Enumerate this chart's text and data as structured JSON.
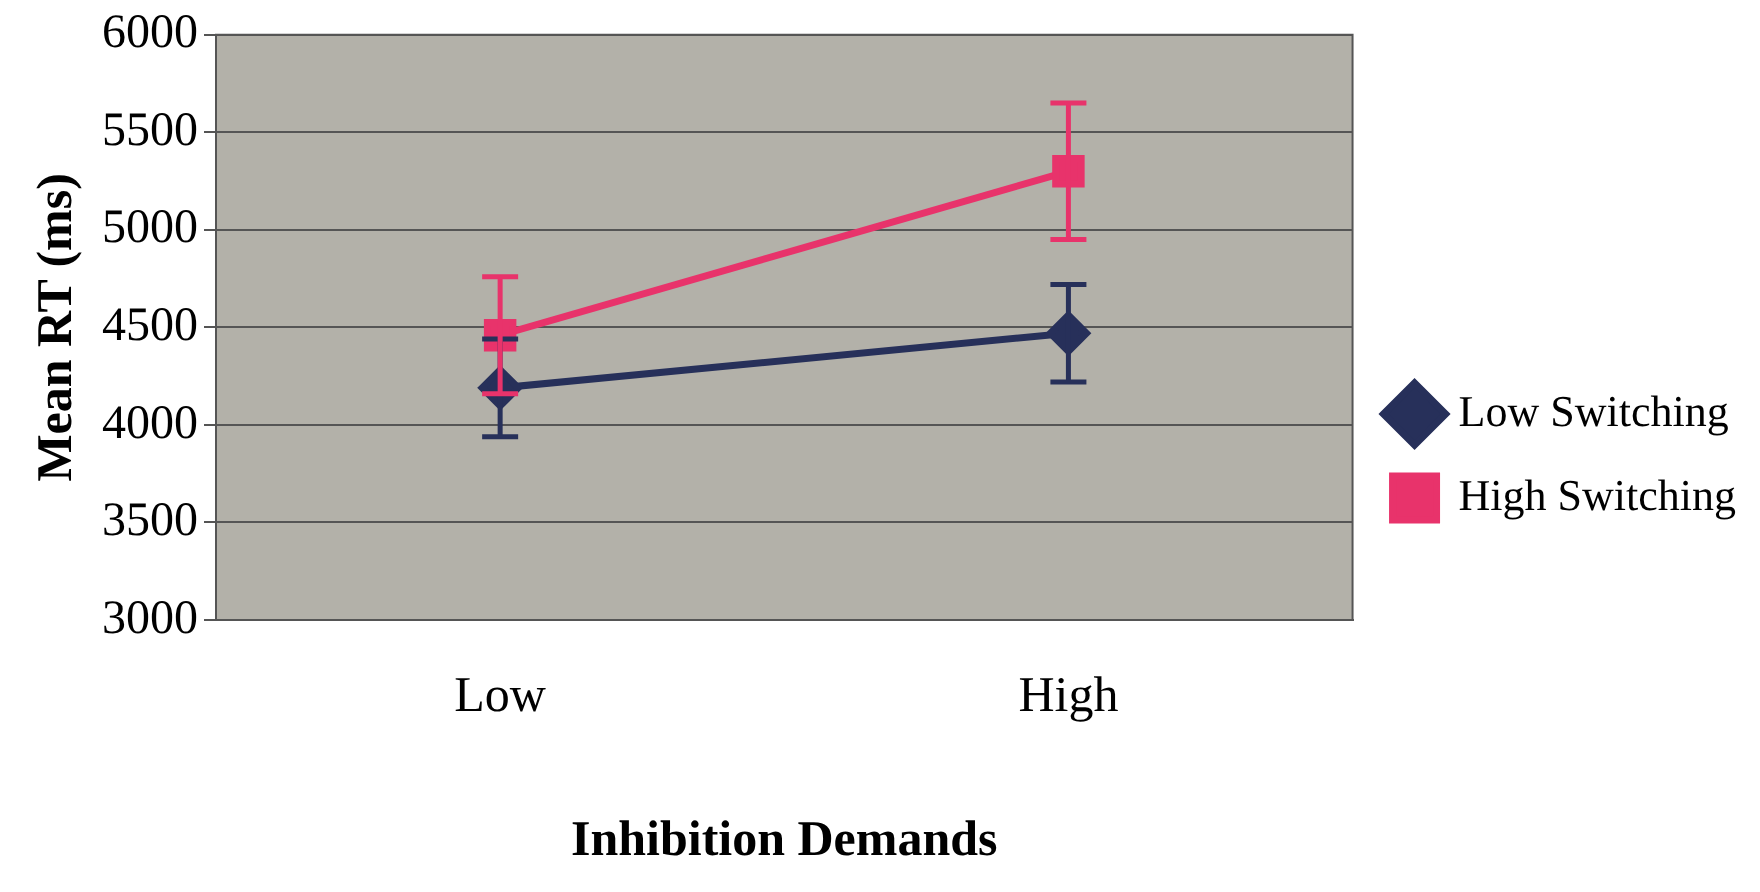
{
  "chart_data": {
    "type": "line",
    "xlabel": "Inhibition Demands",
    "ylabel": "Mean RT (ms)",
    "categories": [
      "Low",
      "High"
    ],
    "series": [
      {
        "name": "Low Switching",
        "color": "#27305a",
        "values": [
          4190,
          4470
        ],
        "errors": [
          250,
          250
        ],
        "marker": "diamond"
      },
      {
        "name": "High Switching",
        "color": "#e8336b",
        "values": [
          4460,
          5300
        ],
        "errors": [
          300,
          350
        ],
        "marker": "square"
      }
    ],
    "ylim": [
      3000,
      6000
    ],
    "yticks": [
      3000,
      3500,
      4000,
      4500,
      5000,
      5500,
      6000
    ],
    "grid": "y",
    "legend": "right",
    "line_style": "solid"
  }
}
